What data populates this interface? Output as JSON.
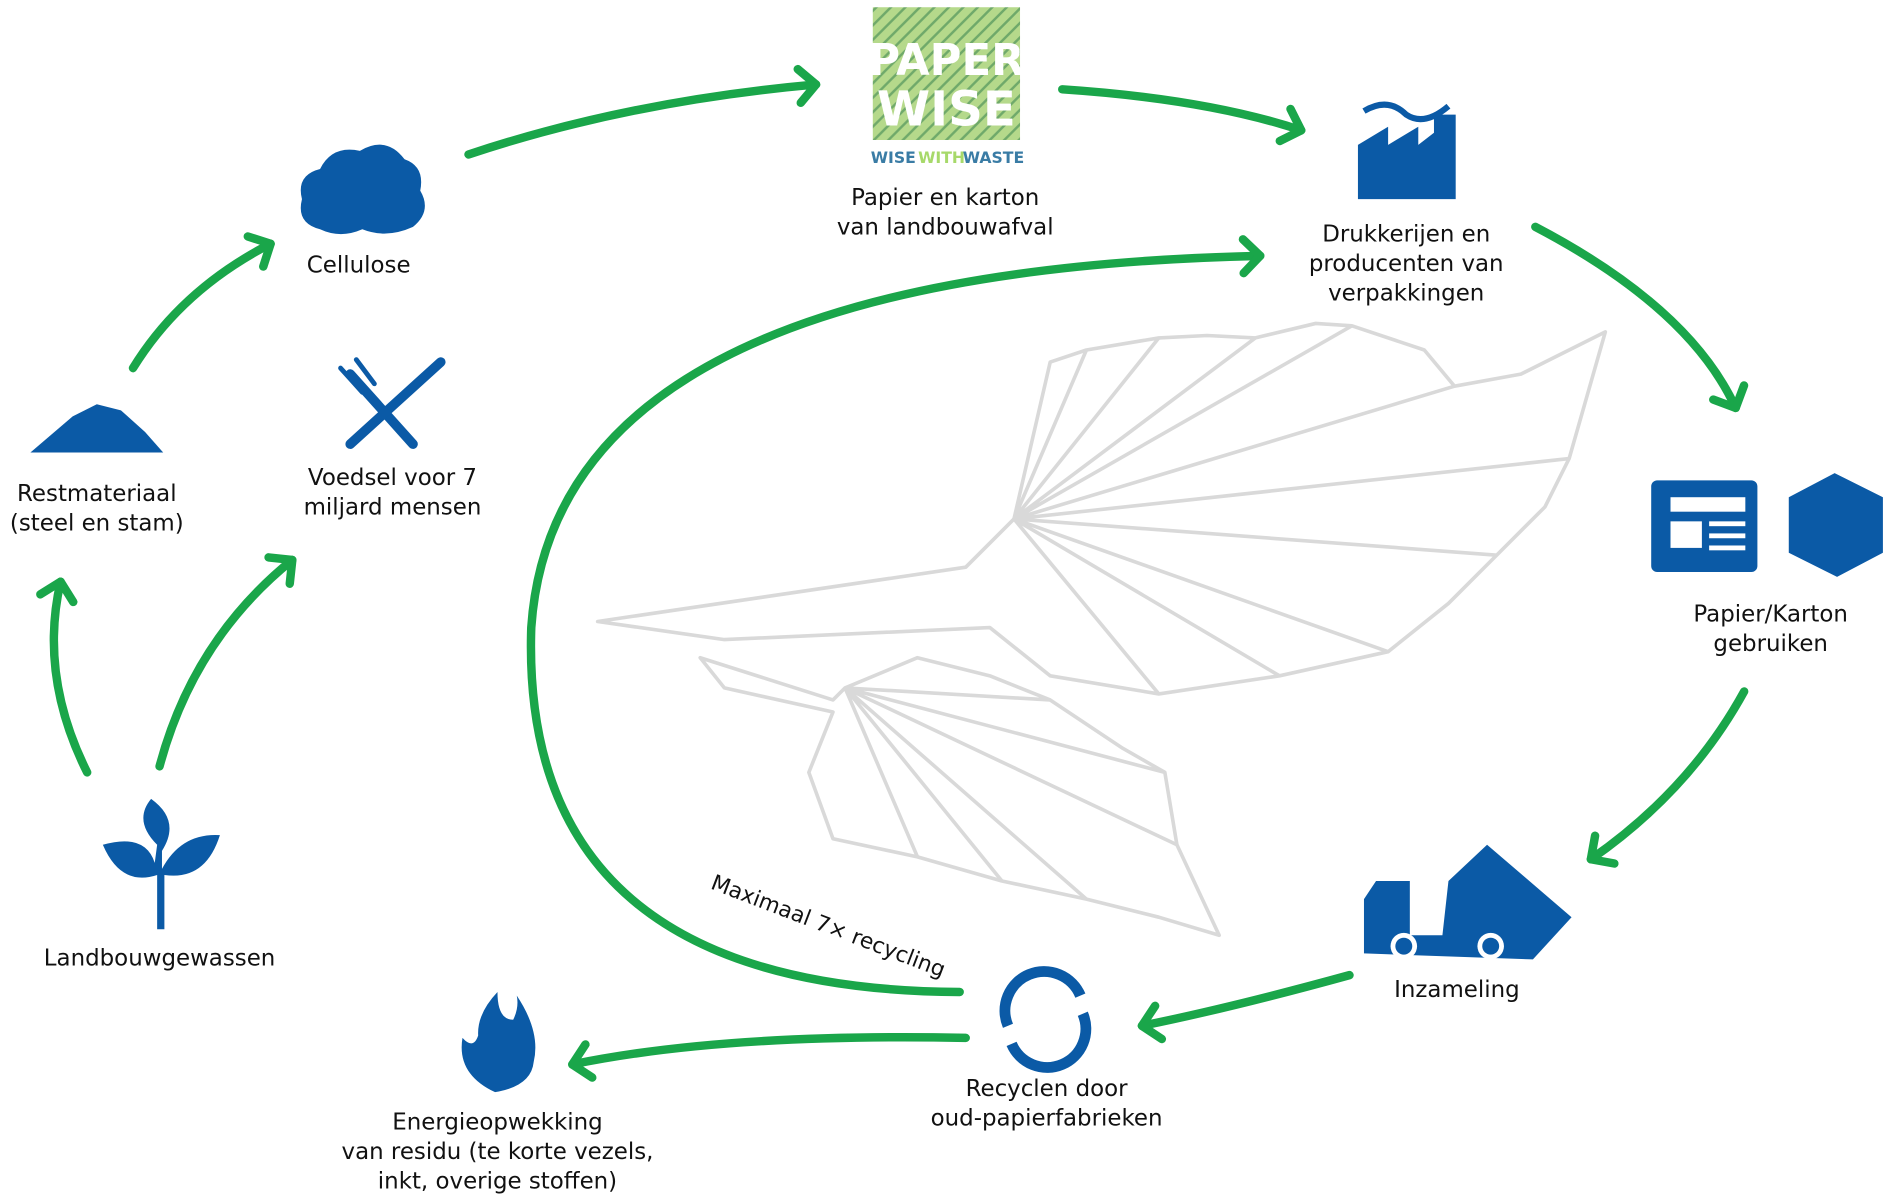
{
  "logo": {
    "top": "PAPER",
    "bottom": "WISE",
    "tagline": [
      "WISE",
      "WITH",
      "WASTE"
    ]
  },
  "nodes": [
    {
      "lines": [
        "Cellulose"
      ]
    },
    {
      "lines": [
        "Papier en karton",
        "van landbouwafval"
      ]
    },
    {
      "lines": [
        "Drukkerijen en",
        "producenten van",
        "verpakkingen"
      ]
    },
    {
      "lines": [
        "Papier/Karton",
        "gebruiken"
      ]
    },
    {
      "lines": [
        "Inzameling"
      ]
    },
    {
      "lines": [
        "Recyclen door",
        "oud-papierfabrieken"
      ]
    },
    {
      "lines": [
        "Energieopwekking",
        "van residu (te korte vezels,",
        "inkt, overige stoffen)"
      ]
    },
    {
      "lines": [
        "Landbouwgewassen"
      ]
    },
    {
      "lines": [
        "Restmateriaal",
        "(steel en stam)"
      ]
    },
    {
      "lines": [
        "Voedsel voor 7",
        "miljard mensen"
      ]
    }
  ],
  "annotation": "Maximaal 7× recycling"
}
